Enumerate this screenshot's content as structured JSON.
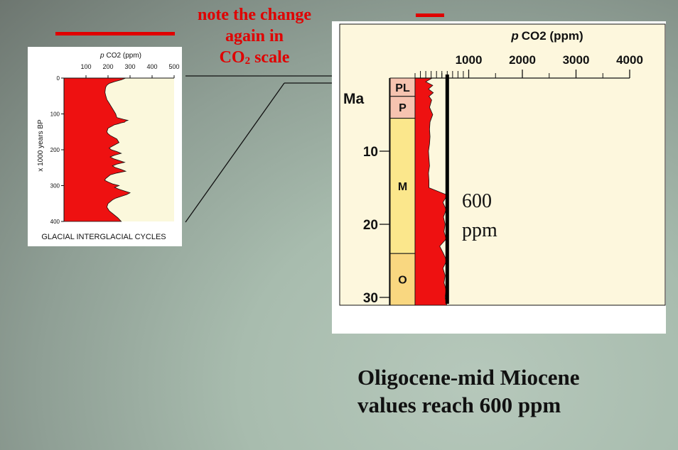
{
  "note": {
    "line1": "note the change",
    "line2": "again in",
    "line3_prefix": "CO",
    "line3_sub": "2",
    "line3_suffix": " scale"
  },
  "caption": {
    "line1": "Oligocene-mid Miocene",
    "line2": "values reach 600 ppm"
  },
  "colors": {
    "accent_red": "#e00000",
    "curve_fill": "#ee1111",
    "epoch_pink": "#f6c3b0",
    "epoch_yellow": "#fbe78c",
    "epoch_orange": "#f9d780"
  },
  "chart_data": [
    {
      "type": "area",
      "title": "GLACIAL INTERGLACIAL CYCLES",
      "xlabel_prefix": "p",
      "xlabel": "CO2 (ppm)",
      "ylabel": "x 1000 years BP",
      "xlim": [
        0,
        500
      ],
      "ylim": [
        0,
        400
      ],
      "x_ticks": [
        100,
        200,
        300,
        400,
        500
      ],
      "y_ticks": [
        0,
        100,
        200,
        300,
        400
      ],
      "series": [
        {
          "y": [
            0,
            5,
            10,
            15,
            20,
            25,
            30,
            40,
            50,
            60,
            70,
            80,
            90,
            100,
            110,
            115,
            118,
            120,
            123,
            125,
            128,
            130,
            135,
            140,
            150,
            155,
            160,
            165,
            170,
            180,
            190,
            195,
            200,
            205,
            210,
            215,
            220,
            225,
            230,
            235,
            240,
            245,
            250,
            255,
            260,
            265,
            270,
            280,
            285,
            290,
            295,
            300,
            305,
            310,
            315,
            320,
            325,
            330,
            335,
            340,
            350,
            360,
            370,
            380,
            390,
            400
          ],
          "x": [
            280,
            260,
            230,
            205,
            195,
            190,
            188,
            186,
            190,
            195,
            205,
            215,
            225,
            235,
            240,
            270,
            290,
            280,
            275,
            260,
            245,
            230,
            215,
            200,
            195,
            200,
            210,
            225,
            240,
            250,
            220,
            205,
            215,
            240,
            260,
            230,
            210,
            225,
            250,
            275,
            240,
            220,
            235,
            260,
            280,
            240,
            210,
            190,
            185,
            200,
            220,
            250,
            230,
            250,
            275,
            300,
            285,
            260,
            235,
            220,
            200,
            195,
            205,
            225,
            245,
            260
          ]
        }
      ]
    },
    {
      "type": "area",
      "xlabel_prefix": "p",
      "xlabel": "CO2 (ppm)",
      "ylabel": "Ma",
      "xlim": [
        0,
        4000
      ],
      "ylim": [
        0,
        30
      ],
      "x_ticks": [
        1000,
        2000,
        3000,
        4000
      ],
      "y_ticks": [
        10,
        20,
        30
      ],
      "epochs": [
        {
          "label": "PL",
          "from": 0,
          "to": 2.5
        },
        {
          "label": "P",
          "from": 2.5,
          "to": 5.5
        },
        {
          "label": "M",
          "from": 5.5,
          "to": 24
        },
        {
          "label": "O",
          "from": 24,
          "to": 31.8
        }
      ],
      "annotation_line_ppm": 600,
      "annotation_value": "600",
      "annotation_unit": "ppm",
      "series": [
        {
          "y": [
            0,
            0.5,
            1,
            1.5,
            2,
            2.5,
            3,
            4,
            5,
            6,
            7,
            8,
            9,
            10,
            11,
            12,
            13,
            14,
            15,
            16,
            17,
            18,
            19,
            20,
            21,
            22,
            23,
            24,
            25,
            26,
            27,
            28,
            29,
            30,
            31,
            31.8
          ],
          "x": [
            320,
            200,
            330,
            250,
            340,
            260,
            310,
            270,
            330,
            280,
            270,
            280,
            270,
            250,
            260,
            270,
            250,
            260,
            260,
            600,
            520,
            580,
            530,
            560,
            540,
            580,
            460,
            530,
            590,
            520,
            560,
            540,
            580,
            560,
            590,
            580
          ]
        }
      ]
    }
  ]
}
